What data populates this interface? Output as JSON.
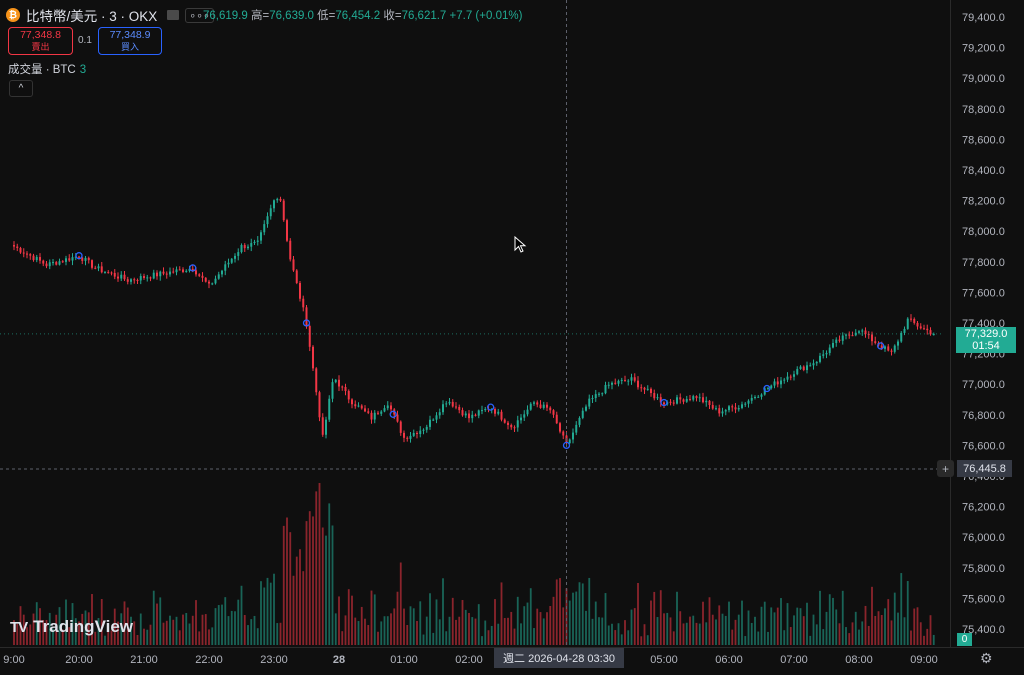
{
  "header": {
    "symbol": "比特幣/美元 · 3 · OKX",
    "coin_glyph": "₿",
    "more_label": "∘∘∘",
    "ohlc": {
      "open": "76,619.9",
      "high_label": "高=",
      "high": "76,639.0",
      "low_label": "低=",
      "low": "76,454.2",
      "close_label": "收=",
      "close": "76,621.7",
      "change": "+7.7 (+0.01%)"
    }
  },
  "trade": {
    "sell_price": "77,348.8",
    "sell_label": "賣出",
    "spread": "0.1",
    "buy_price": "77,348.9",
    "buy_label": "買入"
  },
  "volume_legend": {
    "label": "成交量 · BTC",
    "value": "3"
  },
  "collapse_label": "^",
  "price_axis": {
    "ticks": [
      "79,400.0",
      "79,200.0",
      "79,000.0",
      "78,800.0",
      "78,600.0",
      "78,400.0",
      "78,200.0",
      "78,000.0",
      "77,800.0",
      "77,600.0",
      "77,400.0",
      "77,200.0",
      "77,000.0",
      "76,800.0",
      "76,600.0",
      "76,400.0",
      "76,200.0",
      "76,000.0",
      "75,800.0",
      "75,600.0",
      "75,400.0"
    ]
  },
  "last_price": {
    "value": "77,329.0",
    "countdown": "01:54"
  },
  "cursor_price": "76,445.8",
  "plus_label": "+",
  "volume_last": "0",
  "time_axis": {
    "ticks": [
      "9:00",
      "20:00",
      "21:00",
      "22:00",
      "23:00",
      "28",
      "01:00",
      "02:00",
      "05:00",
      "06:00",
      "07:00",
      "08:00",
      "09:00"
    ]
  },
  "cursor_time": "週二 2026-04-28   03:30",
  "brand": {
    "mark": "TV",
    "name": "TradingView"
  },
  "colors": {
    "up": "#22ab94",
    "down": "#f23645",
    "marker": "#2962ff"
  },
  "chart_data": {
    "type": "candlestick",
    "ylim": [
      75300,
      79500
    ],
    "x_start": "19:00",
    "x_end": "09:15",
    "close_path": [
      {
        "t": "19:00",
        "p": 77900
      },
      {
        "t": "19:30",
        "p": 77780
      },
      {
        "t": "20:00",
        "p": 77840
      },
      {
        "t": "20:15",
        "p": 77760
      },
      {
        "t": "20:45",
        "p": 77680
      },
      {
        "t": "21:15",
        "p": 77720
      },
      {
        "t": "21:45",
        "p": 77760
      },
      {
        "t": "22:00",
        "p": 77640
      },
      {
        "t": "22:30",
        "p": 77900
      },
      {
        "t": "22:45",
        "p": 77920
      },
      {
        "t": "23:00",
        "p": 78200
      },
      {
        "t": "23:05",
        "p": 78250
      },
      {
        "t": "23:15",
        "p": 77820
      },
      {
        "t": "23:30",
        "p": 77400
      },
      {
        "t": "23:45",
        "p": 76650
      },
      {
        "t": "23:55",
        "p": 77050
      },
      {
        "t": "00:10",
        "p": 76900
      },
      {
        "t": "00:30",
        "p": 76780
      },
      {
        "t": "00:45",
        "p": 76880
      },
      {
        "t": "01:00",
        "p": 76650
      },
      {
        "t": "01:20",
        "p": 76720
      },
      {
        "t": "01:40",
        "p": 76900
      },
      {
        "t": "02:00",
        "p": 76780
      },
      {
        "t": "02:20",
        "p": 76850
      },
      {
        "t": "02:40",
        "p": 76720
      },
      {
        "t": "03:00",
        "p": 76880
      },
      {
        "t": "03:15",
        "p": 76830
      },
      {
        "t": "03:30",
        "p": 76600
      },
      {
        "t": "03:50",
        "p": 76880
      },
      {
        "t": "04:10",
        "p": 77000
      },
      {
        "t": "04:30",
        "p": 77030
      },
      {
        "t": "04:45",
        "p": 76950
      },
      {
        "t": "05:00",
        "p": 76880
      },
      {
        "t": "05:30",
        "p": 76920
      },
      {
        "t": "05:50",
        "p": 76820
      },
      {
        "t": "06:10",
        "p": 76860
      },
      {
        "t": "06:30",
        "p": 76950
      },
      {
        "t": "07:00",
        "p": 77080
      },
      {
        "t": "07:20",
        "p": 77150
      },
      {
        "t": "07:40",
        "p": 77280
      },
      {
        "t": "08:00",
        "p": 77360
      },
      {
        "t": "08:10",
        "p": 77300
      },
      {
        "t": "08:30",
        "p": 77200
      },
      {
        "t": "08:45",
        "p": 77420
      },
      {
        "t": "09:00",
        "p": 77360
      },
      {
        "t": "09:10",
        "p": 77329
      }
    ]
  }
}
